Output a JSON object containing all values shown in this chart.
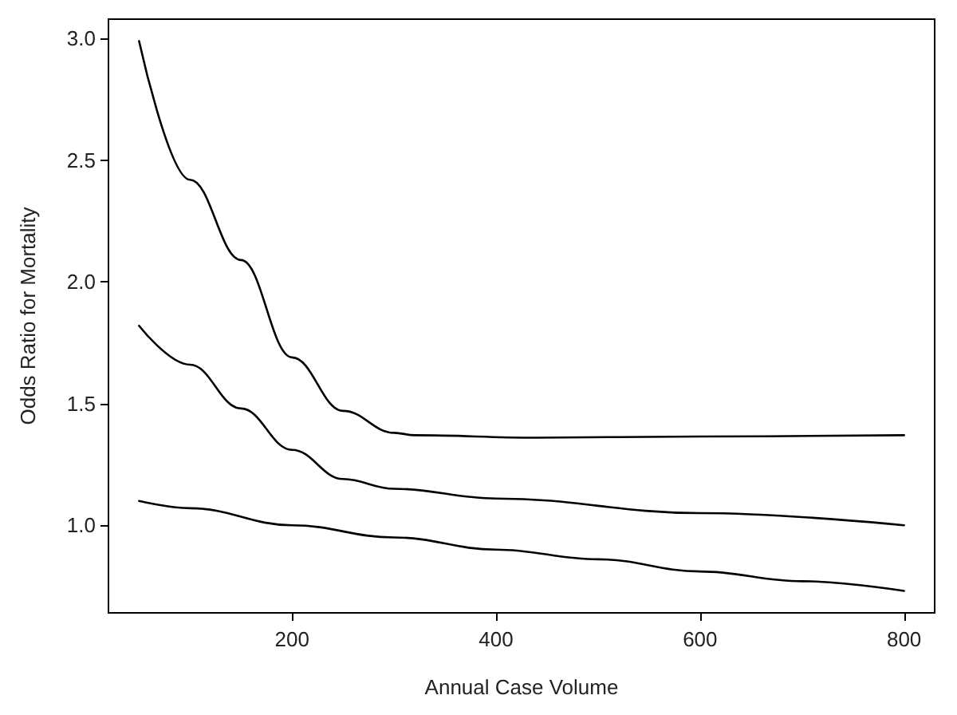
{
  "chart_data": {
    "type": "line",
    "xlabel": "Annual Case Volume",
    "ylabel": "Odds Ratio for Mortality",
    "xlim": [
      20,
      830
    ],
    "ylim": [
      0.64,
      3.08
    ],
    "xticks": [
      200,
      400,
      600,
      800
    ],
    "yticks": [
      {
        "value": 1,
        "label": "1.0"
      },
      1.5,
      {
        "value": 2,
        "label": "2.0"
      },
      2.5,
      {
        "value": 3,
        "label": "3.0"
      }
    ],
    "grid": false,
    "marker": "none",
    "line_style": "solid",
    "series": [
      {
        "color": "#000000",
        "x": [
          50,
          100,
          150,
          200,
          250,
          300,
          320,
          440,
          600,
          800
        ],
        "values": [
          2.99,
          2.42,
          2.09,
          1.69,
          1.47,
          1.38,
          1.37,
          1.36,
          1.365,
          1.37
        ]
      },
      {
        "color": "#000000",
        "x": [
          50,
          100,
          150,
          200,
          250,
          300,
          400,
          600,
          800
        ],
        "values": [
          1.82,
          1.66,
          1.48,
          1.31,
          1.19,
          1.15,
          1.11,
          1.05,
          1.0
        ]
      },
      {
        "color": "#000000",
        "x": [
          50,
          100,
          200,
          300,
          400,
          500,
          600,
          700,
          800
        ],
        "values": [
          1.1,
          1.07,
          1.0,
          0.95,
          0.9,
          0.86,
          0.81,
          0.77,
          0.73
        ]
      }
    ]
  }
}
